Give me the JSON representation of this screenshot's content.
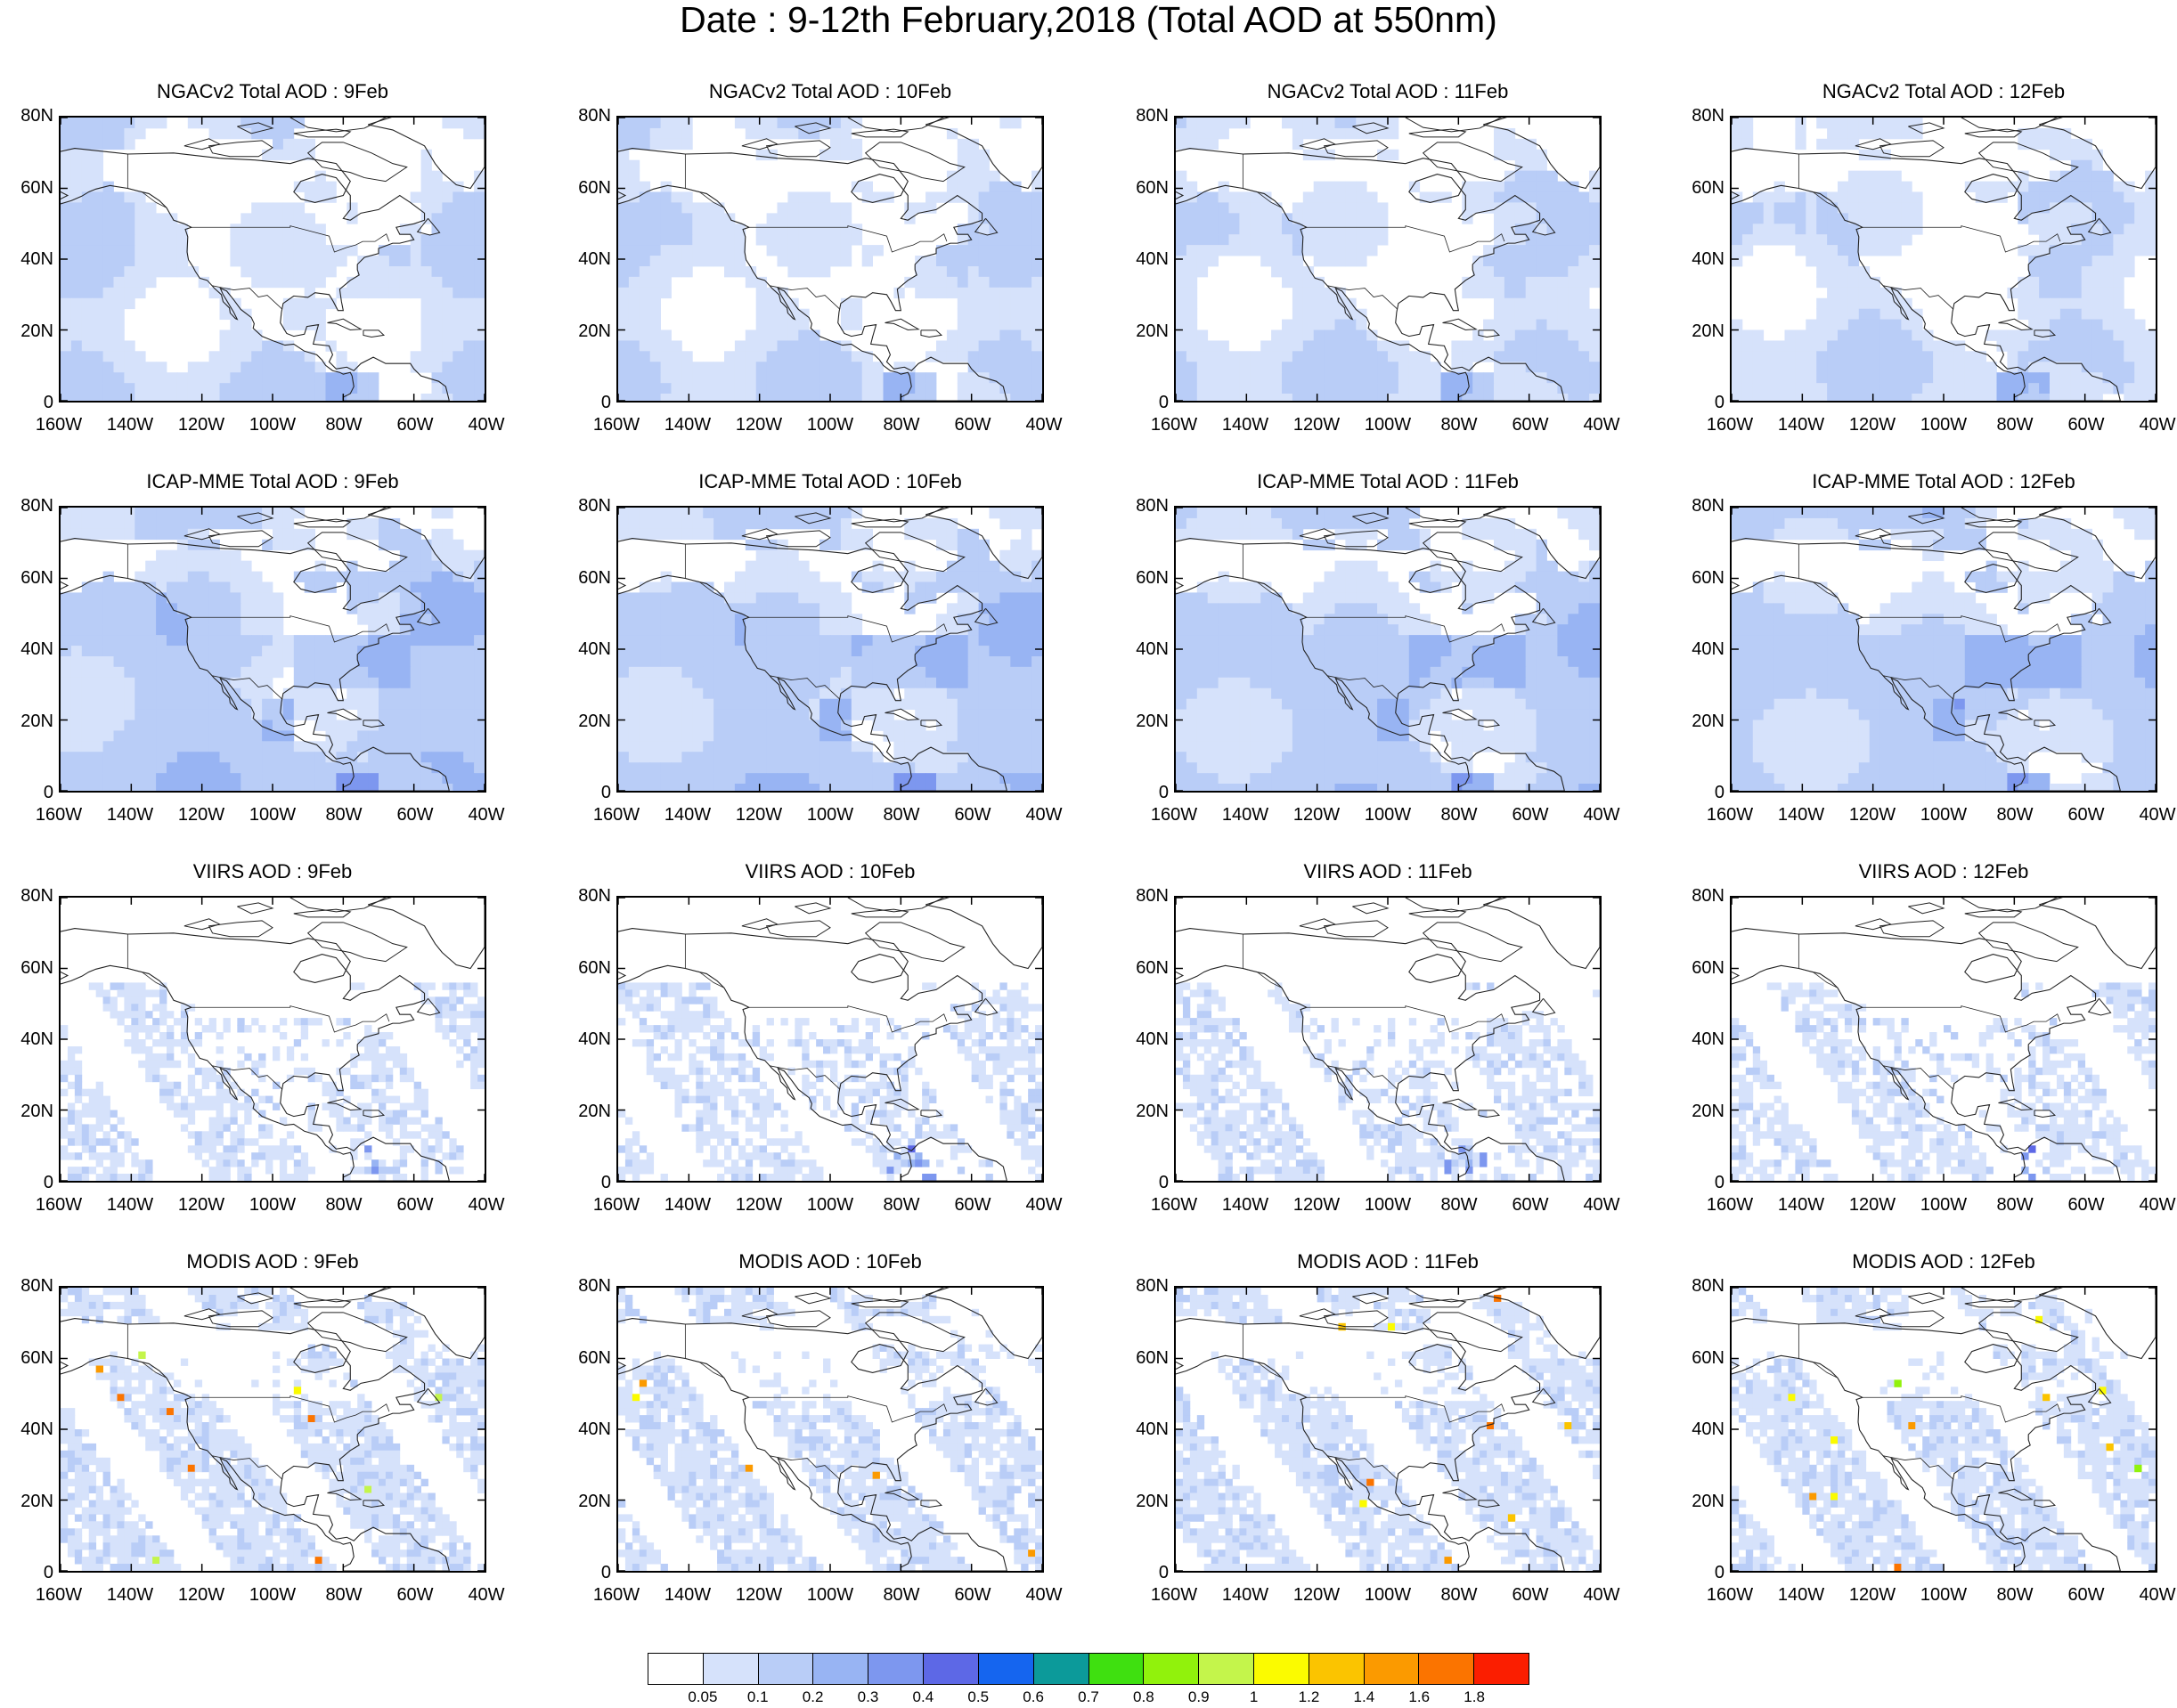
{
  "title": "Date : 9-12th February,2018 (Total AOD at 550nm)",
  "rows": [
    {
      "source": "NGACv2",
      "panels": [
        {
          "title": "NGACv2 Total AOD : 9Feb"
        },
        {
          "title": "NGACv2 Total AOD : 10Feb"
        },
        {
          "title": "NGACv2 Total AOD : 11Feb"
        },
        {
          "title": "NGACv2 Total AOD : 12Feb"
        }
      ]
    },
    {
      "source": "ICAP-MME",
      "panels": [
        {
          "title": "ICAP-MME Total AOD : 9Feb"
        },
        {
          "title": "ICAP-MME Total AOD : 10Feb"
        },
        {
          "title": "ICAP-MME Total AOD : 11Feb"
        },
        {
          "title": "ICAP-MME Total AOD : 12Feb"
        }
      ]
    },
    {
      "source": "VIIRS",
      "panels": [
        {
          "title": "VIIRS AOD : 9Feb"
        },
        {
          "title": "VIIRS AOD : 10Feb"
        },
        {
          "title": "VIIRS AOD : 11Feb"
        },
        {
          "title": "VIIRS AOD : 12Feb"
        }
      ]
    },
    {
      "source": "MODIS",
      "panels": [
        {
          "title": "MODIS AOD : 9Feb"
        },
        {
          "title": "MODIS AOD : 10Feb"
        },
        {
          "title": "MODIS AOD : 11Feb"
        },
        {
          "title": "MODIS AOD : 12Feb"
        }
      ]
    }
  ],
  "lat_ticks": [
    "80N",
    "60N",
    "40N",
    "20N",
    "0"
  ],
  "lon_ticks": [
    "160W",
    "140W",
    "120W",
    "100W",
    "80W",
    "60W",
    "40W"
  ],
  "colorbar": {
    "labels": [
      "0.05",
      "0.1",
      "0.2",
      "0.3",
      "0.4",
      "0.5",
      "0.6",
      "0.7",
      "0.8",
      "0.9",
      "1",
      "1.2",
      "1.4",
      "1.6",
      "1.8"
    ],
    "colors": [
      "#ffffff",
      "#d6e2fb",
      "#b9cdf7",
      "#98b4f3",
      "#7d97ef",
      "#5d68e6",
      "#1565ef",
      "#0c9a9a",
      "#3fe010",
      "#91f20c",
      "#c4f54b",
      "#fbfb00",
      "#fbc400",
      "#fb9a00",
      "#fb7400",
      "#fb1e00"
    ]
  },
  "colors": {
    "land": "#ffffff",
    "ocean_low": "#d6e2fb",
    "haze": "#b9cdf7",
    "plume": "#98b4f3",
    "coast": "#222222"
  }
}
